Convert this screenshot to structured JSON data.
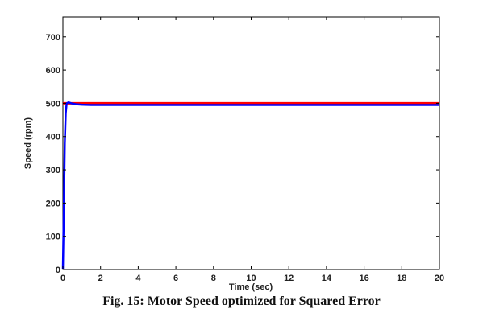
{
  "caption": "Fig. 15: Motor Speed optimized for Squared Error",
  "chart_data": {
    "type": "line",
    "title": "",
    "xlabel": "Time (sec)",
    "ylabel": "Speed (rpm)",
    "xlim": [
      0,
      20
    ],
    "ylim": [
      0,
      760
    ],
    "xticks": [
      0,
      2,
      4,
      6,
      8,
      10,
      12,
      14,
      16,
      18,
      20
    ],
    "yticks": [
      0,
      100,
      200,
      300,
      400,
      500,
      600,
      700
    ],
    "grid": false,
    "series": [
      {
        "color": "#ff0000",
        "x": [
          0,
          20
        ],
        "y": [
          500,
          500
        ]
      },
      {
        "color": "#0000ff",
        "x": [
          0,
          0.05,
          0.1,
          0.15,
          0.2,
          0.3,
          0.45,
          0.7,
          1.0,
          1.5,
          2,
          5,
          10,
          15,
          20
        ],
        "y": [
          0,
          180,
          380,
          470,
          500,
          503,
          500,
          497,
          496,
          495,
          495,
          495,
          495,
          495,
          495
        ]
      }
    ]
  }
}
